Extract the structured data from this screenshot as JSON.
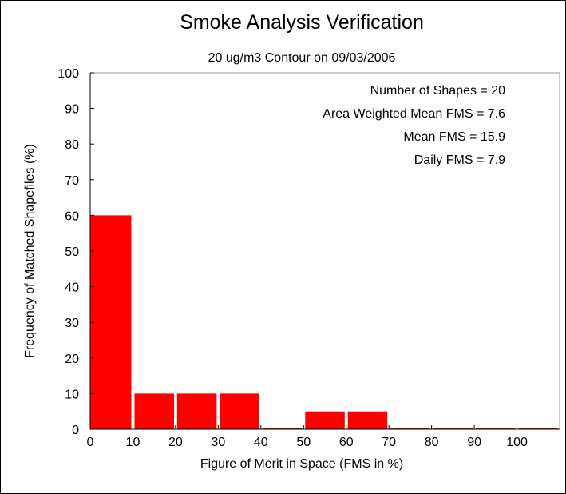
{
  "chart_data": {
    "type": "bar",
    "title": "Smoke Analysis Verification",
    "subtitle": "20 ug/m3 Contour on 09/03/2006",
    "xlabel": "Figure of Merit in Space (FMS in %)",
    "ylabel": "Frequency of Matched Shapefiles (%)",
    "xlim": [
      0,
      110
    ],
    "ylim": [
      0,
      100
    ],
    "x_ticks": [
      "0",
      "10",
      "20",
      "30",
      "40",
      "50",
      "60",
      "70",
      "80",
      "90",
      "100"
    ],
    "y_ticks": [
      "0",
      "10",
      "20",
      "30",
      "40",
      "50",
      "60",
      "70",
      "80",
      "90",
      "100"
    ],
    "bins": [
      {
        "start": 0,
        "end": 10,
        "value": 60
      },
      {
        "start": 10,
        "end": 20,
        "value": 10
      },
      {
        "start": 20,
        "end": 30,
        "value": 10
      },
      {
        "start": 30,
        "end": 40,
        "value": 10
      },
      {
        "start": 40,
        "end": 50,
        "value": 0
      },
      {
        "start": 50,
        "end": 60,
        "value": 5
      },
      {
        "start": 60,
        "end": 70,
        "value": 5
      },
      {
        "start": 70,
        "end": 80,
        "value": 0
      },
      {
        "start": 80,
        "end": 90,
        "value": 0
      },
      {
        "start": 90,
        "end": 100,
        "value": 0
      },
      {
        "start": 100,
        "end": 110,
        "value": 0
      }
    ],
    "bar_color": "#ff0000",
    "grid": false,
    "annotations": [
      "Number of Shapes = 20",
      "Area Weighted Mean FMS = 7.6",
      "Mean FMS = 15.9",
      "Daily FMS = 7.9"
    ]
  }
}
